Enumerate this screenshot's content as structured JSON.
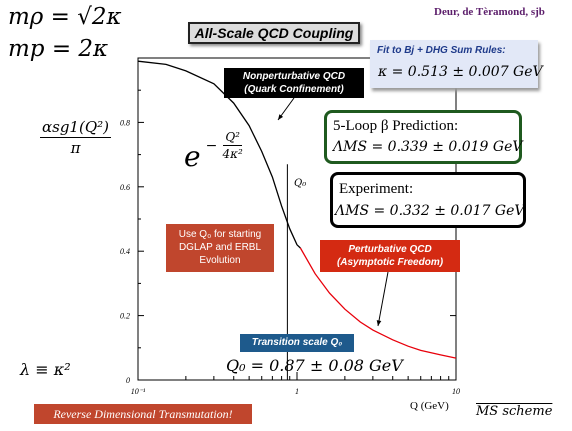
{
  "header": {
    "authors": "Deur, de Tèramond, sjb",
    "title": "All-Scale QCD Coupling"
  },
  "left_formulas": {
    "m_rho": "mρ = √2κ",
    "m_p": "mp = 2κ",
    "lambda_relation": "λ ≡ κ²"
  },
  "ylabel": {
    "numerator": "αsg1(Q²)",
    "denominator": "π"
  },
  "fit_box": {
    "title": "Fit to Bj + DHG Sum Rules:",
    "value": "κ = 0.513 ± 0.007 GeV"
  },
  "loop_box": {
    "line1": "5-Loop β Prediction:",
    "line2": "ΛMS = 0.339 ± 0.019 GeV"
  },
  "experiment_box": {
    "line1": "Experiment:",
    "line2": "ΛMS = 0.332 ± 0.017 GeV"
  },
  "nonpert_label": {
    "line1": "Nonperturbative QCD",
    "line2": "(Quark Confinement)"
  },
  "pert_label": {
    "line1": "Perturbative QCD",
    "line2": "(Asymptotic Freedom)"
  },
  "dglap_note": {
    "line1": "Use Q₀ for starting",
    "line2": "DGLAP  and ERBL",
    "line3": "Evolution"
  },
  "q0_marker": "Q₀",
  "transition_label": "Transition scale Q₀",
  "q0_value": "Q₀ = 0.87 ± 0.08 GeV",
  "gaussian_formula": {
    "base": "e",
    "exp_num": "Q²",
    "exp_den": "4κ²"
  },
  "reverse_banner": "Reverse Dimensional Transmutation!",
  "scheme_label": "MS scheme",
  "colors": {
    "nonpert_curve": "#000000",
    "pert_curve": "#e8000b",
    "pert_label_bg": "#d42a12",
    "dglap_bg": "#c0462d",
    "transition_bg": "#1e5a8c",
    "fit_bg": "#e2e8f7",
    "loop_border": "#1f5a1f",
    "banner_bg": "#c0462d"
  },
  "chart_data": {
    "type": "line",
    "xscale": "log",
    "xlim": [
      0.1,
      10
    ],
    "ylim": [
      0,
      1
    ],
    "xlabel": "Q (GeV)",
    "xtick_labels": [
      "10⁻¹",
      "1",
      "10"
    ],
    "xticks": [
      0.1,
      1,
      10
    ],
    "ytick_labels": [
      "0",
      "0.2",
      "0.4",
      "0.6",
      "0.8"
    ],
    "yticks": [
      0,
      0.2,
      0.4,
      0.6,
      0.8
    ],
    "series": [
      {
        "segment": "nonperturbative",
        "x": [
          0.1,
          0.15,
          0.2,
          0.3,
          0.4,
          0.5,
          0.6,
          0.7,
          0.8,
          0.9,
          1.0,
          1.05
        ],
        "y": [
          0.99,
          0.98,
          0.96,
          0.92,
          0.86,
          0.79,
          0.71,
          0.63,
          0.54,
          0.47,
          0.42,
          0.41
        ]
      },
      {
        "segment": "perturbative",
        "x": [
          1.05,
          1.3,
          1.6,
          2.0,
          2.5,
          3.0,
          4.0,
          5.0,
          6.0,
          8.0,
          10.0
        ],
        "y": [
          0.41,
          0.33,
          0.27,
          0.22,
          0.18,
          0.155,
          0.125,
          0.105,
          0.092,
          0.078,
          0.068
        ]
      }
    ],
    "q0_marker_x": 0.87
  }
}
